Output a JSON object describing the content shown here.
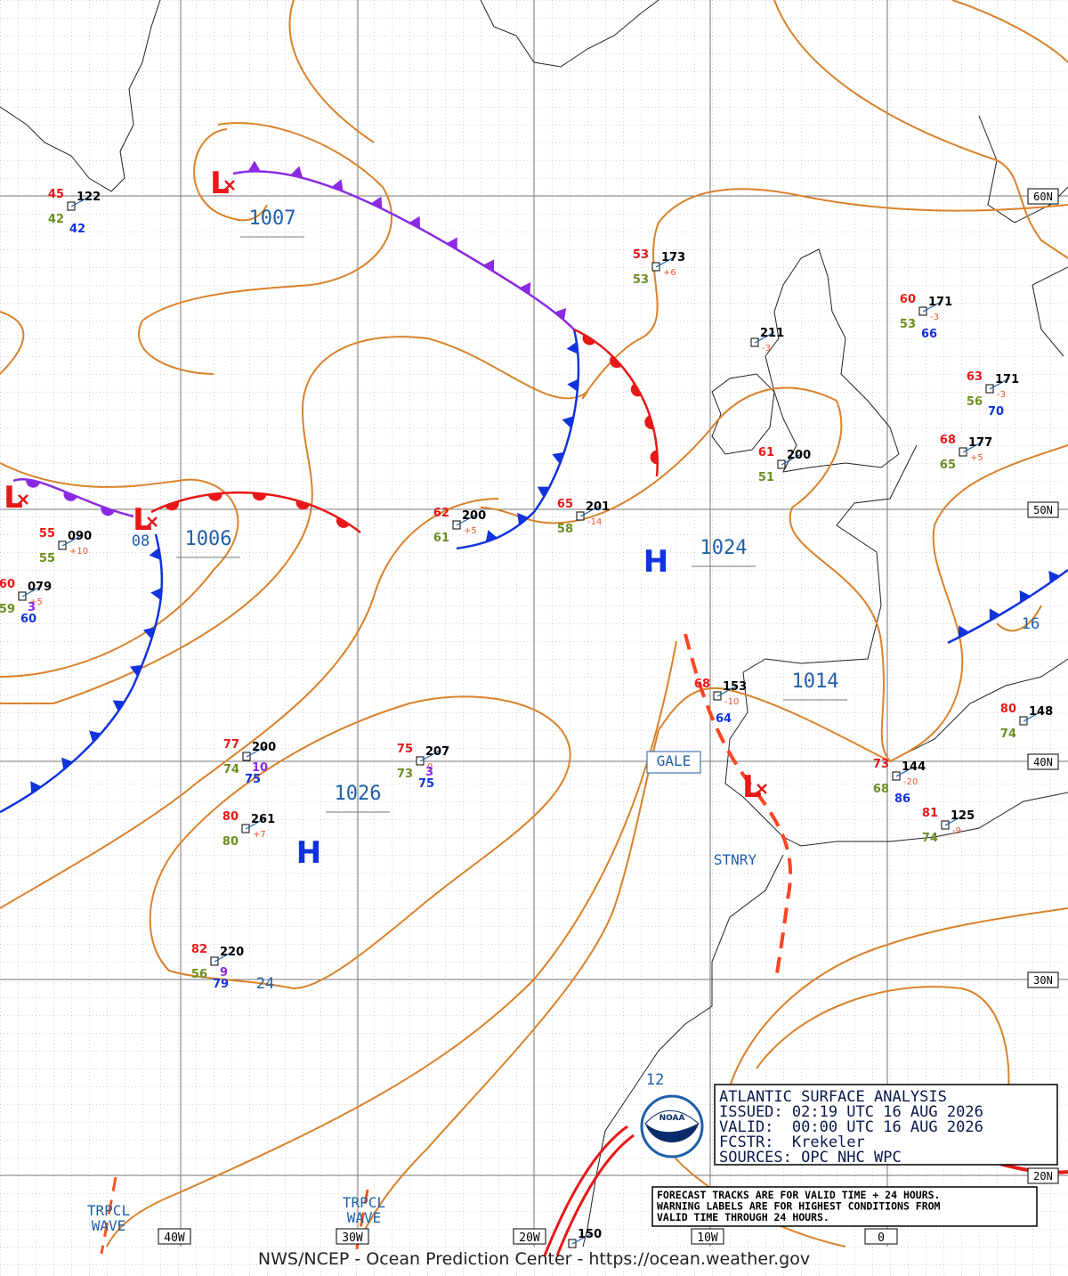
{
  "header": {
    "lines": [
      "ATLANTIC SURFACE ANALYSIS",
      "ISSUED: 02:19 UTC 16 AUG 2026",
      "VALID:  00:00 UTC 16 AUG 2026",
      "FCSTR:  Krekeler",
      "SOURCES: OPC NHC WPC"
    ]
  },
  "note": {
    "lines": [
      "FORECAST TRACKS ARE FOR VALID TIME + 24 HOURS.",
      "WARNING LABELS ARE FOR HIGHEST CONDITIONS FROM",
      "VALID TIME THROUGH 24 HOURS."
    ]
  },
  "logo": {
    "label": "NOAA"
  },
  "footer": "NWS/NCEP - Ocean Prediction Center - https://ocean.weather.gov",
  "lon_labels": [
    "40W",
    "30W",
    "20W",
    "10W",
    "0"
  ],
  "lat_labels": [
    "60N",
    "50N",
    "40N",
    "30N",
    "20N"
  ],
  "pressure_labels": [
    "1007",
    "1006",
    "1024",
    "1014",
    "1026",
    "24",
    "16",
    "12",
    "08"
  ],
  "centers": [
    {
      "label": "L"
    },
    {
      "label": "L"
    },
    {
      "label": "L"
    },
    {
      "label": "L"
    },
    {
      "label": "H"
    },
    {
      "label": "H"
    }
  ],
  "labels": [
    "GALE",
    "STNRY",
    "TRPCL WAVE",
    "TRPCL WAVE"
  ],
  "stations": [
    {
      "temp": "45",
      "pres": "122",
      "dew": "42",
      "extra": [
        "42"
      ]
    },
    {
      "temp": "53",
      "pres": "173",
      "dew": "53",
      "tend": "+6"
    },
    {
      "pres": "211",
      "tend": "-3"
    },
    {
      "temp": "60",
      "pres": "171",
      "dew": "53",
      "tend": "-3",
      "extra": [
        "66"
      ]
    },
    {
      "temp": "63",
      "pres": "171",
      "dew": "56",
      "tend": "-3",
      "extra": [
        "70"
      ]
    },
    {
      "temp": "68",
      "pres": "177",
      "dew": "65",
      "tend": "+5"
    },
    {
      "temp": "61",
      "pres": "200",
      "dew": "51"
    },
    {
      "temp": "65",
      "pres": "201",
      "dew": "58",
      "tend": "-14"
    },
    {
      "temp": "62",
      "pres": "200",
      "dew": "61",
      "tend": "+5"
    },
    {
      "temp": "55",
      "pres": "090",
      "dew": "55",
      "tend": "+10"
    },
    {
      "temp": "60",
      "pres": "079",
      "dew": "59",
      "tend": "+5",
      "extra": [
        "3",
        "60"
      ]
    },
    {
      "temp": "77",
      "pres": "200",
      "dew": "74",
      "extra": [
        "10",
        "75"
      ]
    },
    {
      "temp": "75",
      "pres": "207",
      "dew": "73",
      "tend": "0",
      "extra": [
        "3",
        "75"
      ]
    },
    {
      "temp": "80",
      "pres": "261",
      "dew": "80",
      "tend": "+7"
    },
    {
      "temp": "82",
      "pres": "220",
      "dew": "56",
      "extra": [
        "9",
        "79"
      ]
    },
    {
      "temp": "68",
      "pres": "153",
      "tend": "-10",
      "extra": [
        "64"
      ]
    },
    {
      "temp": "73",
      "pres": "144",
      "dew": "68",
      "tend": "-20",
      "extra": [
        "86"
      ]
    },
    {
      "temp": "81",
      "pres": "125",
      "dew": "74",
      "tend": "-9"
    },
    {
      "temp": "80",
      "pres": "148",
      "dew": "74"
    },
    {
      "pres": "150"
    }
  ]
}
